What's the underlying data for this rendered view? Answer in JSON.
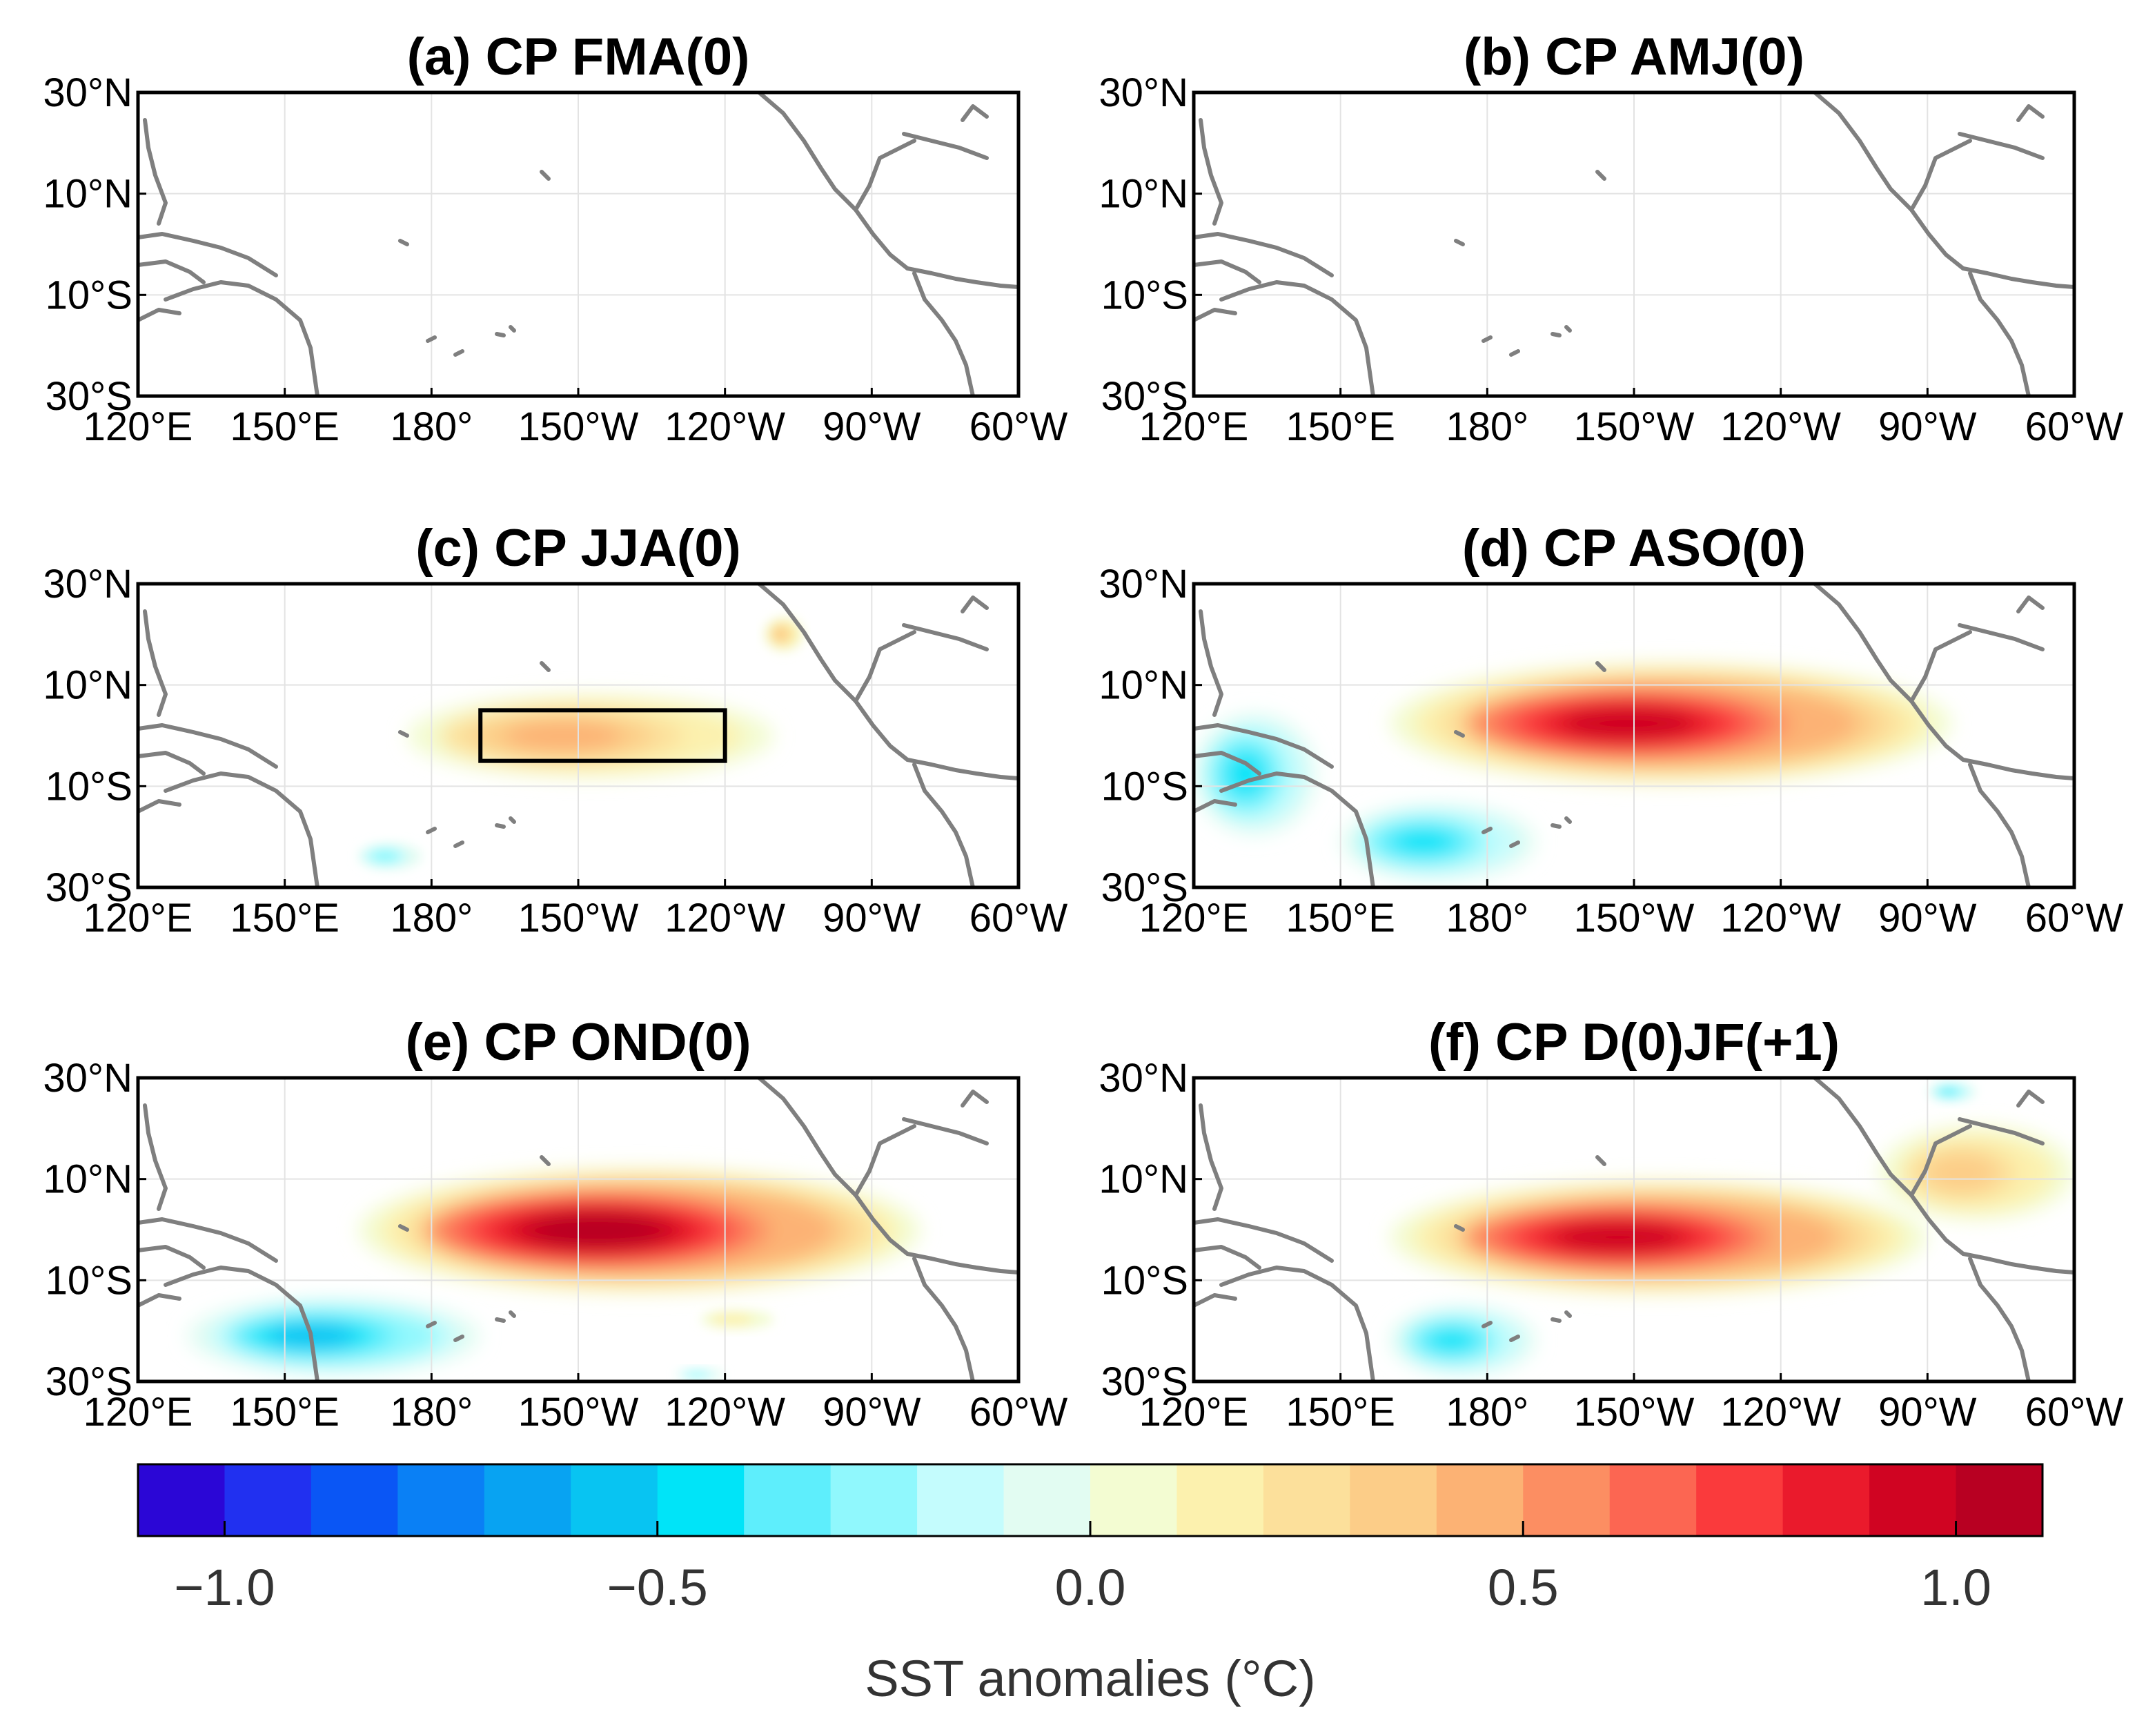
{
  "chart_data": {
    "type": "map",
    "title": "",
    "panels": [
      {
        "label": "(a) CP FMA(0)",
        "season": "FMA(0)",
        "box": false,
        "features": []
      },
      {
        "label": "(b) CP AMJ(0)",
        "season": "AMJ(0)",
        "box": false,
        "features": []
      },
      {
        "label": "(c) CP JJA(0)",
        "season": "JJA(0)",
        "box": true,
        "box_extent": {
          "lon": [
            -170,
            -120
          ],
          "lat": [
            -5,
            5
          ]
        },
        "features": [
          {
            "name": "central Pacific warm tongue",
            "lon": [
              175,
              -110
            ],
            "lat": [
              -10,
              12
            ],
            "peak_anomaly": 0.5
          },
          {
            "name": "Mexican coast warm patch",
            "lon": [
              -112,
              -104
            ],
            "lat": [
              16,
              25
            ],
            "peak_anomaly": 0.4
          },
          {
            "name": "southwest Pacific cool patch",
            "lon": [
              165,
              178
            ],
            "lat": [
              -27,
              -20
            ],
            "peak_anomaly": -0.3
          }
        ]
      },
      {
        "label": "(d) CP ASO(0)",
        "season": "ASO(0)",
        "box": false,
        "features": [
          {
            "name": "equatorial Pacific warm anomaly",
            "lon": [
              160,
              -85
            ],
            "lat": [
              -12,
              20
            ],
            "peak_anomaly": 1.0
          },
          {
            "name": "maritime continent cool anomaly",
            "lon": [
              120,
              145
            ],
            "lat": [
              -22,
              10
            ],
            "peak_anomaly": -0.5
          },
          {
            "name": "SPCZ cool band",
            "lon": [
              150,
              -170
            ],
            "lat": [
              -30,
              -10
            ],
            "peak_anomaly": -0.5
          }
        ]
      },
      {
        "label": "(e) CP OND(0)",
        "season": "OND(0)",
        "box": false,
        "features": [
          {
            "name": "equatorial Pacific warm anomaly",
            "lon": [
              165,
              -80
            ],
            "lat": [
              -15,
              18
            ],
            "peak_anomaly": 1.1
          },
          {
            "name": "southwest Pacific cool band",
            "lon": [
              130,
              -170
            ],
            "lat": [
              -30,
              -10
            ],
            "peak_anomaly": -0.6
          },
          {
            "name": "southeast Pacific warm patch",
            "lon": [
              -125,
              -110
            ],
            "lat": [
              -20,
              -15
            ],
            "peak_anomaly": 0.2
          },
          {
            "name": "south Pacific cool patch",
            "lon": [
              -130,
              -120
            ],
            "lat": [
              -30,
              -27
            ],
            "peak_anomaly": -0.3
          }
        ]
      },
      {
        "label": "(f) CP D(0)JF(+1)",
        "season": "D(0)JF(+1)",
        "box": false,
        "features": [
          {
            "name": "equatorial Pacific warm anomaly",
            "lon": [
              160,
              -90
            ],
            "lat": [
              -15,
              15
            ],
            "peak_anomaly": 1.0
          },
          {
            "name": "Caribbean warm anomaly",
            "lon": [
              -100,
              -60
            ],
            "lat": [
              0,
              25
            ],
            "peak_anomaly": 0.4
          },
          {
            "name": "Gulf of Mexico cool patch",
            "lon": [
              -90,
              -80
            ],
            "lat": [
              25,
              30
            ],
            "peak_anomaly": -0.4
          },
          {
            "name": "southwest Pacific cool band",
            "lon": [
              160,
              -170
            ],
            "lat": [
              -30,
              -12
            ],
            "peak_anomaly": -0.5
          }
        ]
      }
    ],
    "axes": {
      "lon_ticks": [
        "120°E",
        "150°E",
        "180°",
        "150°W",
        "120°W",
        "90°W",
        "60°W"
      ],
      "lat_ticks": [
        "30°N",
        "10°N",
        "10°S",
        "30°S"
      ],
      "lon_range": [
        120,
        300
      ],
      "lat_range": [
        -30,
        30
      ],
      "grid": true
    },
    "colorbar": {
      "label": "SST anomalies (°C)",
      "ticks": [
        "−1.0",
        "−0.5",
        "0.0",
        "0.5",
        "1.0"
      ],
      "tick_values": [
        -1.0,
        -0.5,
        0.0,
        0.5,
        1.0
      ],
      "range": [
        -1.1,
        1.1
      ],
      "step": 0.1,
      "colors": [
        "#2b06d6",
        "#2130f0",
        "#0a56f5",
        "#0a80f5",
        "#08a3f2",
        "#08c4f2",
        "#00e4f8",
        "#5eeefc",
        "#90f8fd",
        "#c4fcfd",
        "#e2fcf2",
        "#f3fcd2",
        "#fcf1ae",
        "#fce09b",
        "#fccd88",
        "#fcb274",
        "#fc8e62",
        "#fc6652",
        "#fa3a3c",
        "#ea1a2c",
        "#d00422",
        "#b80022"
      ]
    }
  }
}
